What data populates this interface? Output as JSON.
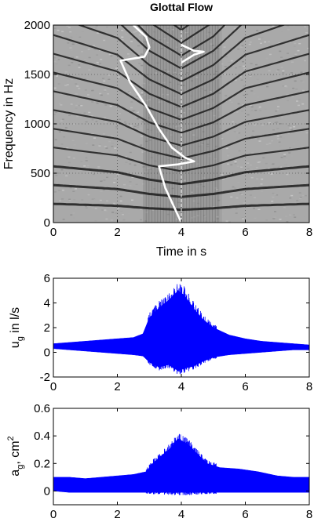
{
  "chart_data": [
    {
      "type": "heatmap",
      "title": "Glottal Flow",
      "xlabel": "Time in s",
      "ylabel": "Frequency in Hz",
      "xlim": [
        0,
        8
      ],
      "ylim": [
        0,
        2000
      ],
      "xticks": [
        "0",
        "2",
        "4",
        "6",
        "8"
      ],
      "yticks": [
        "0",
        "500",
        "1000",
        "1500",
        "2000"
      ],
      "grid": "on",
      "colormap": "gray (spectrogram)",
      "marker_line_x": 4,
      "harmonic_f0_hz": [
        {
          "t": 0,
          "f": 190
        },
        {
          "t": 2,
          "f": 170
        },
        {
          "t": 3,
          "f": 145
        },
        {
          "t": 4,
          "f": 130
        },
        {
          "t": 5,
          "f": 145
        },
        {
          "t": 6,
          "f": 170
        },
        {
          "t": 8,
          "f": 190
        }
      ],
      "overlay_flow_curve": {
        "color": "#ffffff",
        "points": [
          {
            "x": 2.5,
            "y": 2000
          },
          {
            "x": 2.9,
            "y": 1880
          },
          {
            "x": 3.0,
            "y": 1775
          },
          {
            "x": 2.85,
            "y": 1680
          },
          {
            "x": 2.1,
            "y": 1640
          },
          {
            "x": 2.4,
            "y": 1420
          },
          {
            "x": 2.9,
            "y": 1180
          },
          {
            "x": 3.3,
            "y": 950
          },
          {
            "x": 3.7,
            "y": 760
          },
          {
            "x": 4.1,
            "y": 660
          },
          {
            "x": 4.4,
            "y": 620
          },
          {
            "x": 3.9,
            "y": 590
          },
          {
            "x": 3.3,
            "y": 570
          },
          {
            "x": 3.5,
            "y": 350
          },
          {
            "x": 4.0,
            "y": 0
          }
        ],
        "branch_top": [
          {
            "x": 4.0,
            "y": 1800
          },
          {
            "x": 4.4,
            "y": 1740
          },
          {
            "x": 4.7,
            "y": 1730
          },
          {
            "x": 4.4,
            "y": 1700
          },
          {
            "x": 4.0,
            "y": 1620
          }
        ]
      }
    },
    {
      "type": "area",
      "ylabel": "u",
      "ylabel_sub": "g",
      "ylabel_suffix": " in l/s",
      "xlim": [
        0,
        8
      ],
      "ylim": [
        -2,
        6
      ],
      "xticks": [
        "0",
        "2",
        "4",
        "6",
        "8"
      ],
      "yticks": [
        "-2",
        "0",
        "2",
        "4",
        "6"
      ],
      "color": "#0000ff",
      "envelope": {
        "t": [
          0,
          0.5,
          1,
          1.5,
          2,
          2.5,
          2.8,
          3.0,
          3.3,
          3.6,
          3.9,
          4.1,
          4.4,
          4.7,
          5.0,
          5.5,
          6.0,
          6.5,
          7.0,
          7.5,
          8.0
        ],
        "upper": [
          0.7,
          0.8,
          0.9,
          1.0,
          1.1,
          1.2,
          1.5,
          2.8,
          3.6,
          4.2,
          5.0,
          4.6,
          3.5,
          2.6,
          2.0,
          1.4,
          1.1,
          0.9,
          0.8,
          0.7,
          0.6
        ],
        "lower": [
          0.3,
          0.2,
          0.1,
          0.0,
          -0.1,
          -0.2,
          -0.3,
          -0.8,
          -1.2,
          -1.0,
          -1.5,
          -1.3,
          -1.1,
          -0.7,
          -0.4,
          -0.2,
          -0.1,
          0.0,
          0.1,
          0.2,
          0.2
        ]
      }
    },
    {
      "type": "area",
      "ylabel": "a",
      "ylabel_sub": "g",
      "ylabel_suffix": ", cm",
      "ylabel_sup": "2",
      "xlim": [
        0,
        8
      ],
      "ylim": [
        -0.1,
        0.6
      ],
      "xticks": [
        "0",
        "2",
        "4",
        "6",
        "8"
      ],
      "yticks": [
        "0",
        "0.2",
        "0.4",
        "0.6"
      ],
      "color": "#0000ff",
      "envelope": {
        "t": [
          0,
          0.5,
          1,
          1.5,
          2,
          2.5,
          2.9,
          3.1,
          3.4,
          3.7,
          3.9,
          4.2,
          4.5,
          4.8,
          5.2,
          5.8,
          6.4,
          7.0,
          7.5,
          8.0
        ],
        "upper": [
          0.1,
          0.1,
          0.09,
          0.1,
          0.11,
          0.12,
          0.14,
          0.2,
          0.26,
          0.32,
          0.38,
          0.34,
          0.27,
          0.2,
          0.17,
          0.16,
          0.14,
          0.11,
          0.1,
          0.1
        ],
        "lower": [
          0.0,
          -0.01,
          -0.01,
          -0.01,
          -0.01,
          -0.01,
          -0.01,
          -0.01,
          -0.01,
          -0.01,
          -0.01,
          -0.01,
          -0.01,
          -0.01,
          -0.01,
          -0.01,
          -0.01,
          -0.01,
          -0.01,
          -0.01
        ]
      }
    }
  ]
}
